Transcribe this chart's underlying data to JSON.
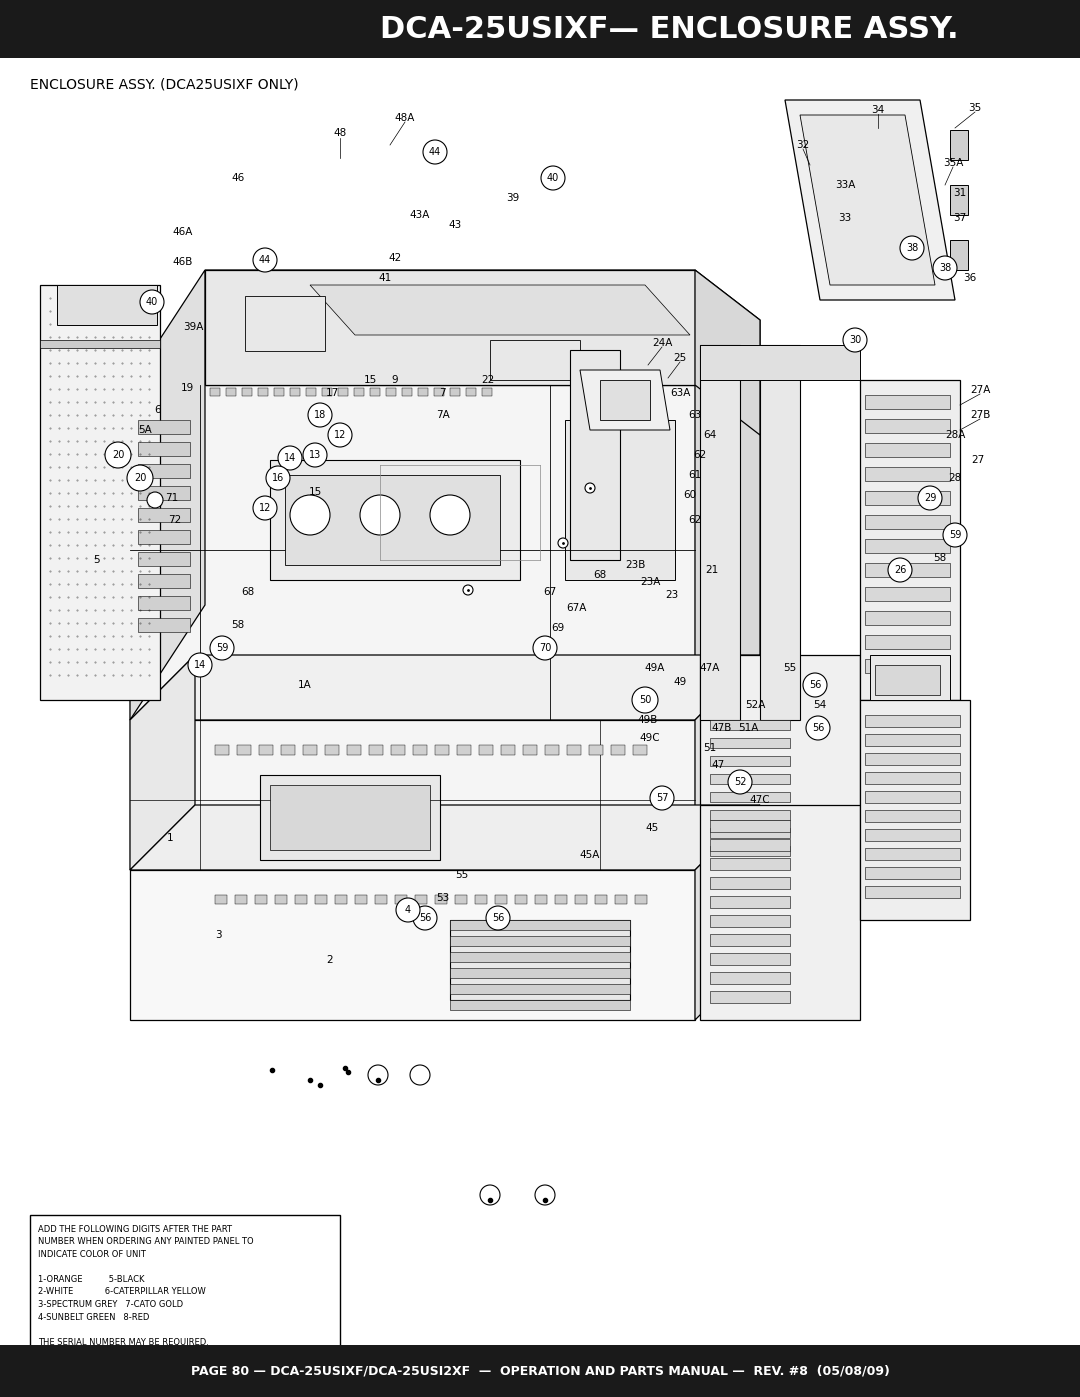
{
  "header_text": "DCA-25USIXF— ENCLOSURE ASSY.",
  "header_bg": "#1a1a1a",
  "header_text_color": "#ffffff",
  "footer_text": "PAGE 80 — DCA-25USIXF/DCA-25USI2XF  —  OPERATION AND PARTS MANUAL —  REV. #8  (05/08/09)",
  "footer_bg": "#1a1a1a",
  "footer_text_color": "#ffffff",
  "page_bg": "#ffffff",
  "subtitle_text": "ENCLOSURE ASSY. (DCA25USIXF ONLY)",
  "note_lines": [
    "ADD THE FOLLOWING DIGITS AFTER THE PART",
    "NUMBER WHEN ORDERING ANY PAINTED PANEL TO",
    "INDICATE COLOR OF UNIT",
    "",
    "1-ORANGE          5-BLACK",
    "2-WHITE            6-CATERPILLAR YELLOW",
    "3-SPECTRUM GREY   7-CATO GOLD",
    "4-SUNBELT GREEN   8-RED",
    "",
    "THE SERIAL NUMBER MAY BE REQUIRED."
  ],
  "fig_width": 10.8,
  "fig_height": 13.97,
  "dpi": 100
}
